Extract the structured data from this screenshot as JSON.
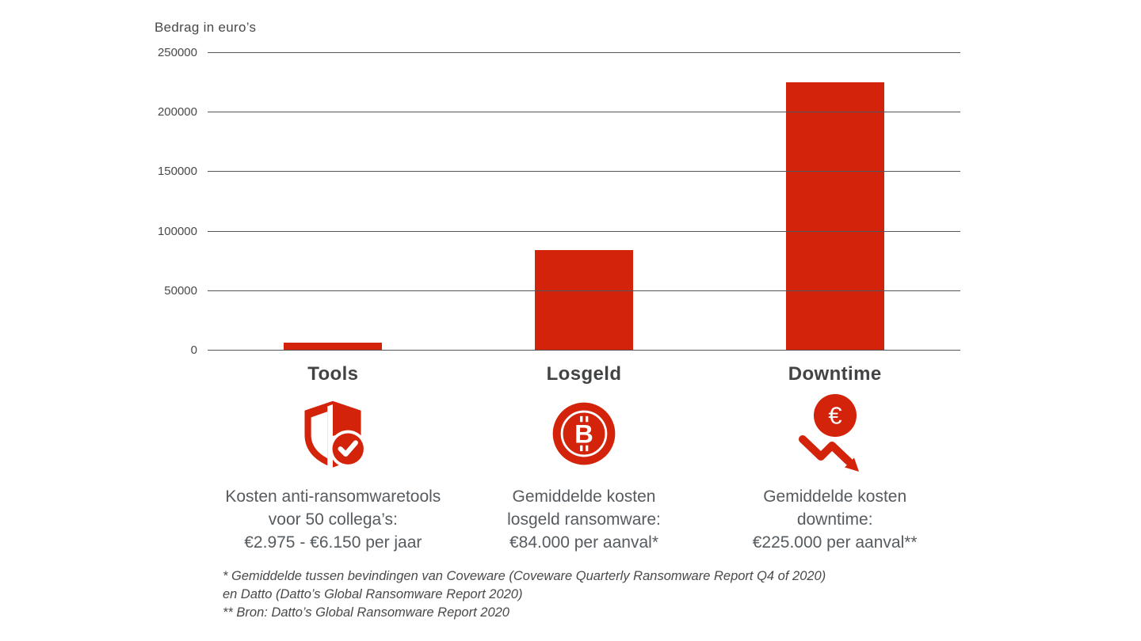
{
  "chart_data": {
    "type": "bar",
    "title": "Bedrag in euro’s",
    "categories": [
      "Tools",
      "Losgeld",
      "Downtime"
    ],
    "values": [
      6000,
      84000,
      225000
    ],
    "xlabel": "",
    "ylabel": "Bedrag in euro’s",
    "ylim": [
      0,
      250000
    ],
    "yticks": [
      250000,
      200000,
      150000,
      100000,
      50000,
      0
    ],
    "grid": true,
    "legend_position": "none",
    "bar_color": "#d3230a"
  },
  "columns": [
    {
      "label": "Tools",
      "icon": "shield-check-icon",
      "description_lines": [
        "Kosten anti-ransomwaretools",
        "voor 50 collega’s:",
        "€2.975 - €6.150 per jaar"
      ]
    },
    {
      "label": "Losgeld",
      "icon": "bitcoin-icon",
      "description_lines": [
        "Gemiddelde kosten",
        "losgeld ransomware:",
        "€84.000 per aanval*"
      ]
    },
    {
      "label": "Downtime",
      "icon": "euro-decline-icon",
      "description_lines": [
        "Gemiddelde kosten",
        "downtime:",
        "€225.000 per aanval**"
      ]
    }
  ],
  "footnote_lines": [
    "* Gemiddelde tussen bevindingen van Coveware (Coveware Quarterly Ransomware Report Q4 of 2020)",
    "en Datto (Datto’s Global Ransomware Report 2020)",
    "** Bron: Datto’s Global Ransomware Report 2020"
  ],
  "colors": {
    "accent_red": "#d3230a",
    "grid_gray": "#54555a",
    "label_dark": "#424345",
    "text_gray": "#565b5f"
  }
}
